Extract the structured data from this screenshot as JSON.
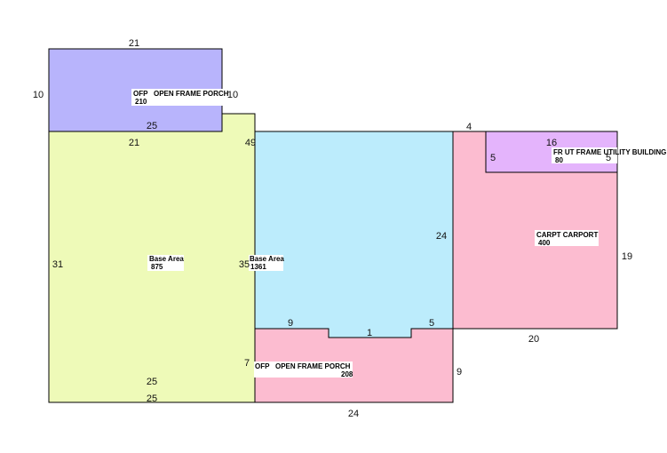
{
  "areas": [
    {
      "label": "OFP   OPEN FRAME PORCH",
      "area": 210
    },
    {
      "label": "Base Area",
      "area": 875
    },
    {
      "label": "Base Area",
      "area": 1361
    },
    {
      "label": "CARPT CARPORT",
      "area": 400
    },
    {
      "label": "FR UT FRAME UTILITY BUILDING",
      "area": 80
    },
    {
      "label": "OFP   OPEN FRAME PORCH",
      "area": 208
    }
  ],
  "dimensions": [
    21,
    10,
    10,
    25,
    21,
    49,
    4,
    16,
    5,
    5,
    24,
    19,
    31,
    35,
    9,
    1,
    5,
    20,
    7,
    9,
    25,
    25,
    24
  ]
}
